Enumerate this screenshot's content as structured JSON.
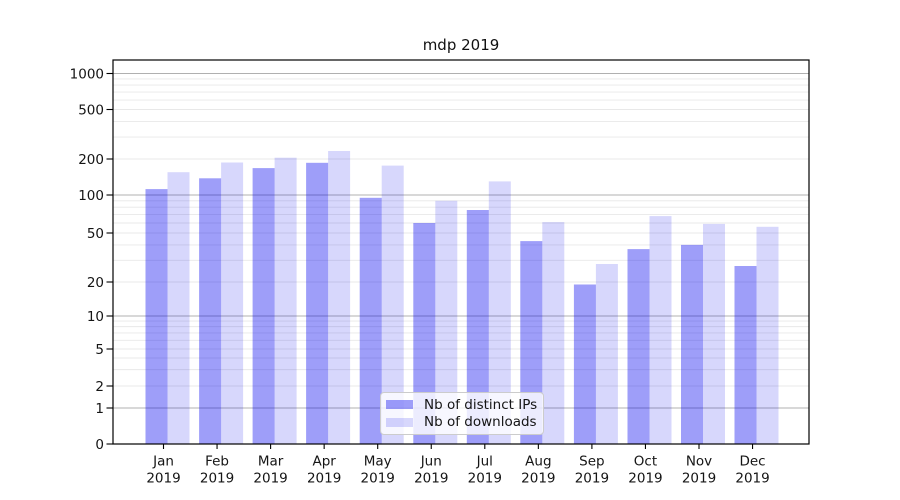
{
  "figure": {
    "title": "mdp 2019"
  },
  "chart_data": {
    "type": "bar",
    "title": "mdp 2019",
    "categories": [
      "Jan",
      "Feb",
      "Mar",
      "Apr",
      "May",
      "Jun",
      "Jul",
      "Aug",
      "Sep",
      "Oct",
      "Nov",
      "Dec"
    ],
    "x_tick_second_line": "2019",
    "series": [
      {
        "name": "Nb of distinct IPs",
        "color": "rgba(0,0,238,0.38)",
        "values": [
          112,
          138,
          168,
          186,
          95,
          60,
          76,
          43,
          19,
          37,
          40,
          27
        ]
      },
      {
        "name": "Nb of downloads",
        "color": "rgba(0,0,238,0.155)",
        "values": [
          155,
          187,
          205,
          232,
          176,
          90,
          130,
          61,
          28,
          68,
          59,
          56
        ]
      }
    ],
    "xlabel": "",
    "ylabel": "",
    "yscale": "symlog",
    "y_ticks": [
      0,
      1,
      2,
      5,
      10,
      20,
      50,
      100,
      200,
      500,
      1000
    ],
    "ylim": [
      0,
      1300
    ],
    "grid": "horizontal, major and minor",
    "legend_position": "lower center",
    "colors": {
      "major_grid": "#b0b0b0",
      "minor_grid": "#e8e8e8",
      "axis": "#000000",
      "text": "#151515"
    }
  }
}
